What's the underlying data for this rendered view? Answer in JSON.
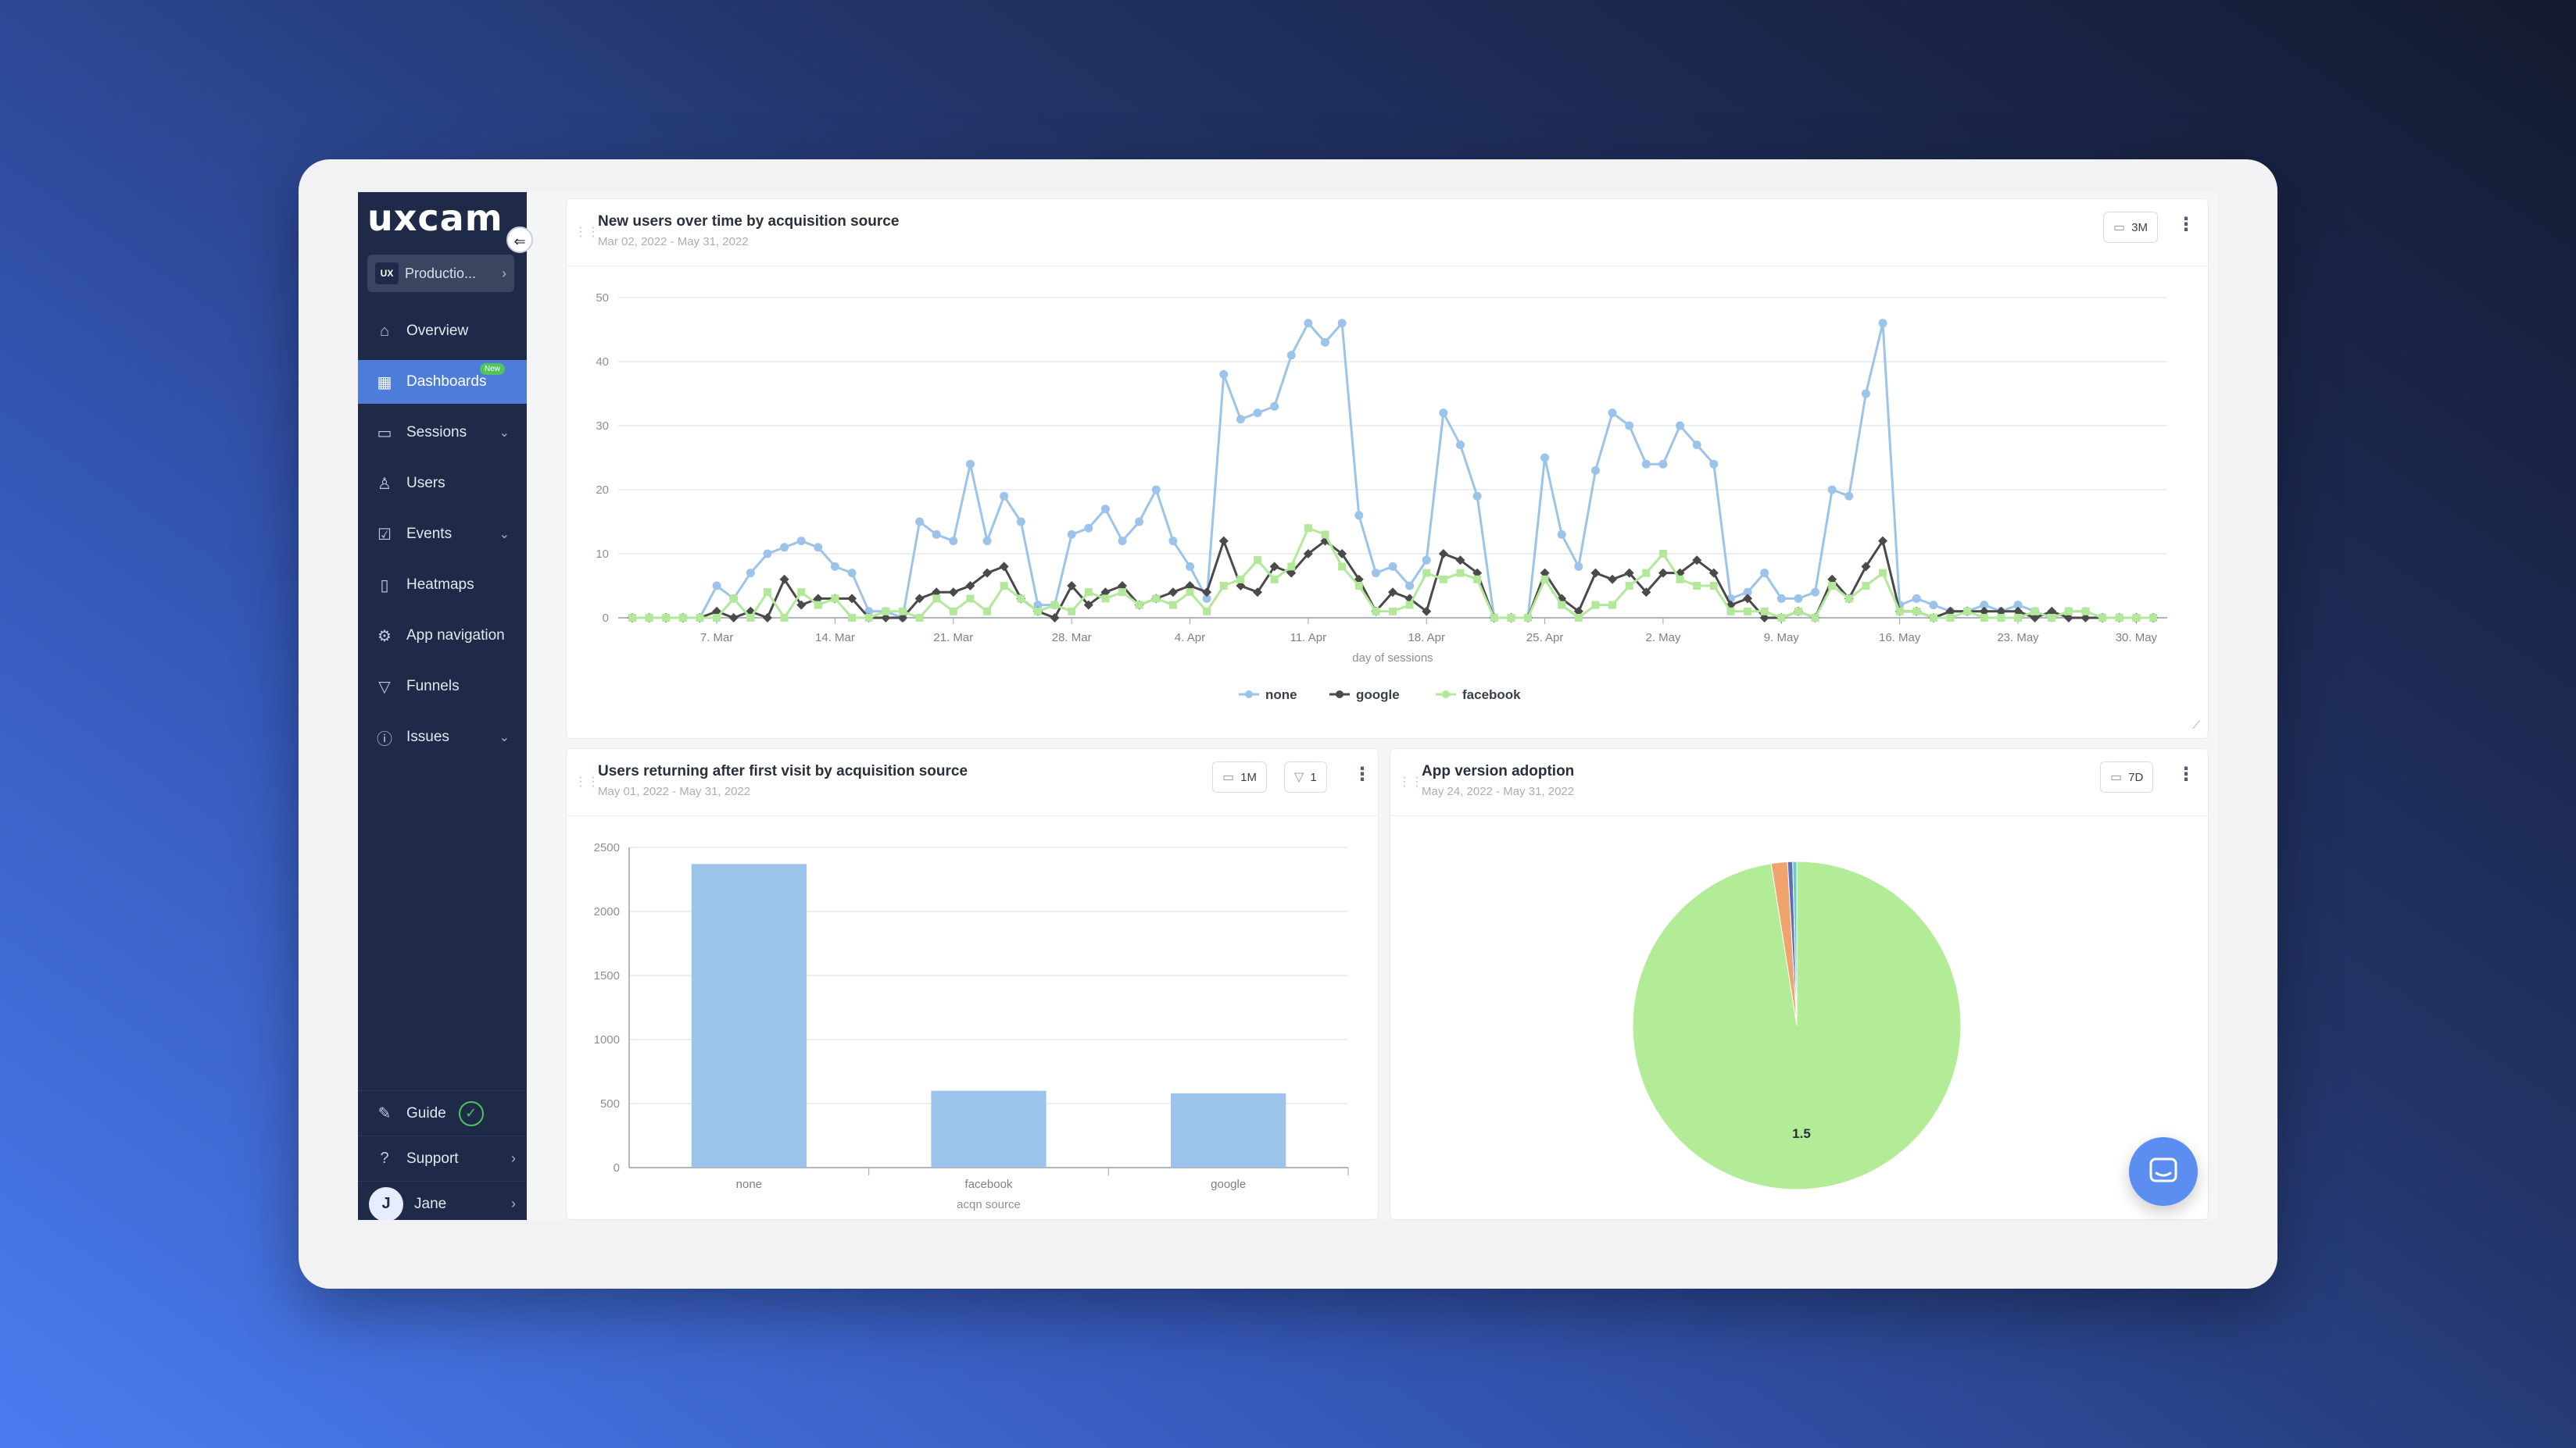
{
  "brand": {
    "logo": "uxcam"
  },
  "sidebar": {
    "project": {
      "badge": "UX",
      "label": "Productio..."
    },
    "items": [
      {
        "label": "Overview",
        "icon": "home-icon"
      },
      {
        "label": "Dashboards",
        "icon": "dashboard-icon",
        "badge": "New",
        "active": true
      },
      {
        "label": "Sessions",
        "icon": "sessions-icon",
        "caret": true
      },
      {
        "label": "Users",
        "icon": "users-icon"
      },
      {
        "label": "Events",
        "icon": "events-icon",
        "caret": true
      },
      {
        "label": "Heatmaps",
        "icon": "heatmap-icon"
      },
      {
        "label": "App navigation",
        "icon": "app-navigation-icon"
      },
      {
        "label": "Funnels",
        "icon": "funnel-icon"
      },
      {
        "label": "Issues",
        "icon": "issues-icon",
        "caret": true
      }
    ],
    "bottom": {
      "guide": "Guide",
      "support": "Support",
      "user_initial": "J",
      "user_name": "Jane"
    }
  },
  "cards": {
    "new_users": {
      "title": "New users over time by acquisition source",
      "subtitle": "Mar 02, 2022 - May 31, 2022",
      "range_label": "3M"
    },
    "returning": {
      "title": "Users returning after first visit by acquisition source",
      "subtitle": "May 01, 2022 - May 31, 2022",
      "range_label": "1M",
      "filter_label": "1"
    },
    "app_version": {
      "title": "App version adoption",
      "subtitle": "May 24, 2022 - May 31, 2022",
      "range_label": "7D"
    }
  },
  "chart_data": [
    {
      "type": "line",
      "xlabel": "day of sessions",
      "ylabel": "",
      "ylim": [
        0,
        50
      ],
      "yticks": [
        0,
        10,
        20,
        30,
        40,
        50
      ],
      "x_start": "2022-03-02",
      "x_tick_labels": [
        "7. Mar",
        "14. Mar",
        "21. Mar",
        "28. Mar",
        "4. Apr",
        "11. Apr",
        "18. Apr",
        "25. Apr",
        "2. May",
        "9. May",
        "16. May",
        "23. May",
        "30. May"
      ],
      "legend": "bottom-center",
      "grid": true,
      "series": [
        {
          "name": "none",
          "color": "#9cc3ea",
          "values": [
            0,
            0,
            0,
            0,
            0,
            5,
            3,
            7,
            10,
            11,
            12,
            11,
            8,
            7,
            1,
            1,
            0,
            15,
            13,
            12,
            24,
            12,
            19,
            15,
            2,
            2,
            13,
            14,
            17,
            12,
            15,
            20,
            12,
            8,
            3,
            38,
            31,
            32,
            33,
            41,
            46,
            43,
            46,
            16,
            7,
            8,
            5,
            9,
            32,
            27,
            19,
            0,
            0,
            0,
            25,
            13,
            8,
            23,
            32,
            30,
            24,
            24,
            30,
            27,
            24,
            3,
            4,
            7,
            3,
            3,
            4,
            20,
            19,
            35,
            46,
            2,
            3,
            2,
            1,
            1,
            2,
            1,
            2,
            1,
            0,
            1,
            1,
            0,
            0,
            0,
            0
          ]
        },
        {
          "name": "google",
          "color": "#4a4a4a",
          "values": [
            0,
            0,
            0,
            0,
            0,
            1,
            0,
            1,
            0,
            6,
            2,
            3,
            3,
            3,
            0,
            0,
            0,
            3,
            4,
            4,
            5,
            7,
            8,
            3,
            1,
            0,
            5,
            2,
            4,
            5,
            2,
            3,
            4,
            5,
            4,
            12,
            5,
            4,
            8,
            7,
            10,
            12,
            10,
            6,
            1,
            4,
            3,
            1,
            10,
            9,
            7,
            0,
            0,
            0,
            7,
            3,
            1,
            7,
            6,
            7,
            4,
            7,
            7,
            9,
            7,
            2,
            3,
            0,
            0,
            1,
            0,
            6,
            3,
            8,
            12,
            1,
            1,
            0,
            1,
            1,
            1,
            1,
            1,
            0,
            1,
            0,
            0,
            0,
            0,
            0,
            0
          ]
        },
        {
          "name": "facebook",
          "color": "#b3e89a",
          "values": [
            0,
            0,
            0,
            0,
            0,
            0,
            3,
            0,
            4,
            0,
            4,
            2,
            3,
            0,
            0,
            1,
            1,
            0,
            3,
            1,
            3,
            1,
            5,
            3,
            1,
            2,
            1,
            4,
            3,
            4,
            2,
            3,
            2,
            4,
            1,
            5,
            6,
            9,
            6,
            8,
            14,
            13,
            8,
            5,
            1,
            1,
            2,
            7,
            6,
            7,
            6,
            0,
            0,
            0,
            6,
            2,
            0,
            2,
            2,
            5,
            7,
            10,
            6,
            5,
            5,
            1,
            1,
            1,
            0,
            1,
            0,
            5,
            3,
            5,
            7,
            1,
            1,
            0,
            0,
            1,
            0,
            0,
            0,
            1,
            0,
            1,
            1,
            0,
            0,
            0,
            0
          ]
        }
      ]
    },
    {
      "type": "bar",
      "categories": [
        "none",
        "facebook",
        "google"
      ],
      "values": [
        2370,
        600,
        580
      ],
      "xlabel": "acqn source",
      "ylabel": "",
      "ylim": [
        0,
        2500
      ],
      "yticks": [
        0,
        500,
        1000,
        1500,
        2000,
        2500
      ],
      "color": "#9cc3ea"
    },
    {
      "type": "pie",
      "slices": [
        {
          "label": "1.5",
          "value": 97.5,
          "color": "#b3ec96"
        },
        {
          "label": "",
          "value": 1.6,
          "color": "#f1a36d"
        },
        {
          "label": "",
          "value": 0.5,
          "color": "#5b6fb8"
        },
        {
          "label": "",
          "value": 0.4,
          "color": "#6ecac6"
        }
      ]
    }
  ]
}
